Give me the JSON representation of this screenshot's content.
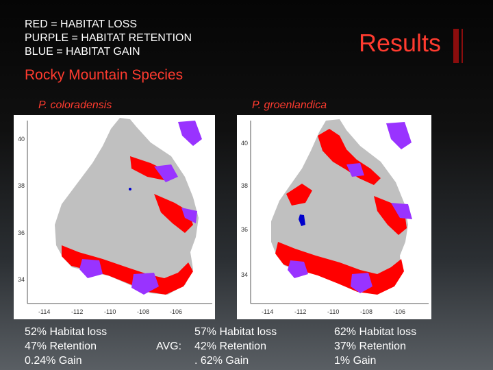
{
  "legend": {
    "red": "RED = HABITAT LOSS",
    "purple": "PURPLE = HABITAT RETENTION",
    "blue": "BLUE = HABITAT GAIN"
  },
  "title": "Results",
  "subtitle": "Rocky Mountain Species",
  "maps": [
    {
      "species": "P. coloradensis",
      "y_ticks": [
        "40",
        "38",
        "36",
        "34"
      ],
      "x_ticks": [
        "-114",
        "-112",
        "-110",
        "-108",
        "-106"
      ]
    },
    {
      "species": "P. groenlandica",
      "y_ticks": [
        "40",
        "38",
        "36",
        "34"
      ],
      "x_ticks": [
        "-114",
        "-112",
        "-110",
        "-108",
        "-106"
      ]
    }
  ],
  "stats": {
    "left": [
      "52% Habitat loss",
      "47% Retention",
      "0.24% Gain"
    ],
    "avg_label": "AVG:",
    "avg": [
      "57% Habitat loss",
      "42% Retention",
      ". 62% Gain"
    ],
    "right": [
      "62% Habitat loss",
      "37% Retention",
      "1% Gain"
    ]
  },
  "colors": {
    "loss": "#ff0000",
    "retention": "#9933ff",
    "gain": "#0000cc",
    "background_range": "#c0c0c0",
    "accent": "#ff3b2f"
  }
}
